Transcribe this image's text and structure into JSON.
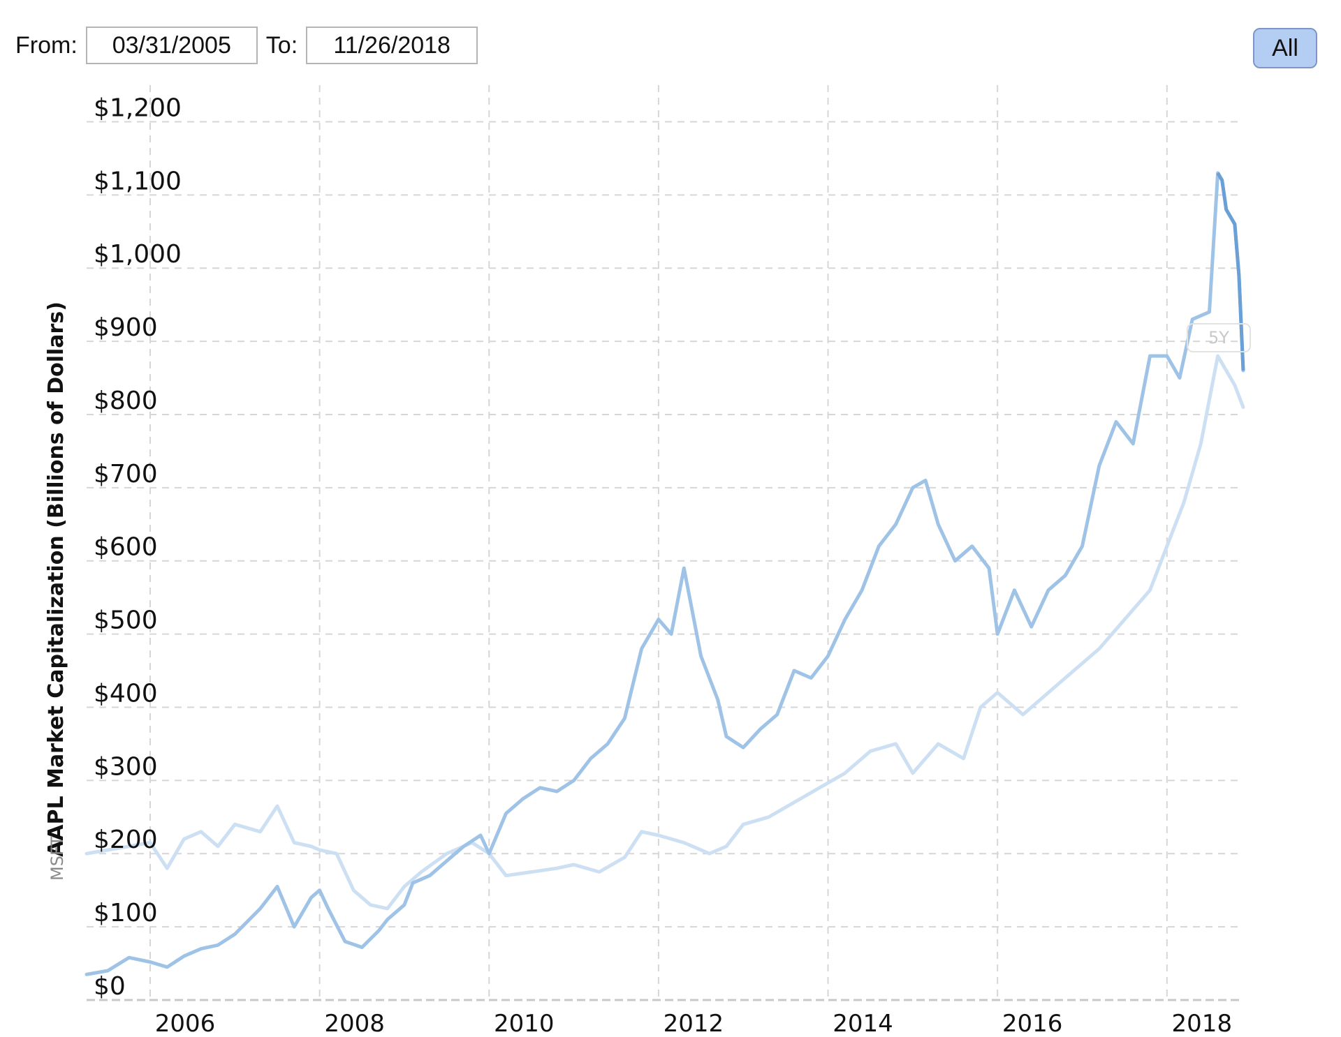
{
  "range_selector": {
    "from_label": "From:",
    "from_value": "03/31/2005",
    "to_label": "To:",
    "to_value": "11/26/2018",
    "all_button": "All",
    "overlay_button": "5Y"
  },
  "colors": {
    "aapl_line": "#9fc3e6",
    "msft_line": "#cde0f3",
    "peak_line": "#6aa0d6",
    "grid": "#d6d6d6",
    "all_button_bg": "#b4cdf3"
  },
  "chart_data": {
    "type": "line",
    "ylabel": "AAPL Market Capitalization (Billions of Dollars)",
    "comparison_label": "MSFT",
    "ylim": [
      0,
      1250
    ],
    "xlim": [
      2005.25,
      2018.9
    ],
    "yticks": [
      0,
      100,
      200,
      300,
      400,
      500,
      600,
      700,
      800,
      900,
      1000,
      1100,
      1200
    ],
    "ytick_labels": [
      "$0",
      "$100",
      "$200",
      "$300",
      "$400",
      "$500",
      "$600",
      "$700",
      "$800",
      "$900",
      "$1,000",
      "$1,100",
      "$1,200"
    ],
    "xticks": [
      2006,
      2008,
      2010,
      2012,
      2014,
      2016,
      2018
    ],
    "xtick_labels": [
      "2006",
      "2008",
      "2010",
      "2012",
      "2014",
      "2016",
      "2018"
    ],
    "grid": true,
    "series": [
      {
        "name": "AAPL",
        "x": [
          2005.25,
          2005.5,
          2005.75,
          2006.0,
          2006.2,
          2006.4,
          2006.6,
          2006.8,
          2007.0,
          2007.3,
          2007.5,
          2007.7,
          2007.9,
          2008.0,
          2008.1,
          2008.3,
          2008.5,
          2008.7,
          2008.8,
          2009.0,
          2009.1,
          2009.3,
          2009.5,
          2009.7,
          2009.9,
          2010.0,
          2010.2,
          2010.4,
          2010.6,
          2010.8,
          2011.0,
          2011.2,
          2011.4,
          2011.6,
          2011.8,
          2012.0,
          2012.15,
          2012.3,
          2012.5,
          2012.7,
          2012.8,
          2013.0,
          2013.2,
          2013.4,
          2013.6,
          2013.8,
          2014.0,
          2014.2,
          2014.4,
          2014.6,
          2014.8,
          2015.0,
          2015.15,
          2015.3,
          2015.5,
          2015.7,
          2015.9,
          2016.0,
          2016.2,
          2016.4,
          2016.6,
          2016.8,
          2017.0,
          2017.2,
          2017.4,
          2017.6,
          2017.8,
          2018.0,
          2018.15,
          2018.3,
          2018.5,
          2018.6,
          2018.65,
          2018.7,
          2018.8,
          2018.85,
          2018.9
        ],
        "values": [
          35,
          40,
          58,
          52,
          45,
          60,
          70,
          75,
          90,
          125,
          155,
          100,
          140,
          150,
          125,
          80,
          72,
          95,
          110,
          130,
          160,
          170,
          190,
          210,
          225,
          200,
          255,
          275,
          290,
          285,
          300,
          330,
          350,
          385,
          480,
          520,
          500,
          590,
          470,
          410,
          360,
          345,
          370,
          390,
          450,
          440,
          470,
          520,
          560,
          620,
          650,
          700,
          710,
          650,
          600,
          620,
          590,
          500,
          560,
          510,
          560,
          580,
          620,
          730,
          790,
          760,
          880,
          880,
          850,
          930,
          940,
          1130,
          1120,
          1080,
          1060,
          990,
          860
        ]
      },
      {
        "name": "MSFT",
        "x": [
          2005.25,
          2005.5,
          2005.75,
          2006.0,
          2006.2,
          2006.4,
          2006.6,
          2006.8,
          2007.0,
          2007.3,
          2007.5,
          2007.7,
          2007.9,
          2008.0,
          2008.2,
          2008.4,
          2008.6,
          2008.8,
          2009.0,
          2009.2,
          2009.5,
          2009.8,
          2010.0,
          2010.2,
          2010.5,
          2010.8,
          2011.0,
          2011.3,
          2011.6,
          2011.8,
          2012.0,
          2012.3,
          2012.6,
          2012.8,
          2013.0,
          2013.3,
          2013.6,
          2013.9,
          2014.2,
          2014.5,
          2014.8,
          2015.0,
          2015.3,
          2015.6,
          2015.8,
          2016.0,
          2016.3,
          2016.6,
          2016.9,
          2017.2,
          2017.5,
          2017.8,
          2018.0,
          2018.2,
          2018.4,
          2018.6,
          2018.8,
          2018.9
        ],
        "values": [
          200,
          205,
          210,
          215,
          180,
          220,
          230,
          210,
          240,
          230,
          265,
          215,
          210,
          205,
          200,
          150,
          130,
          125,
          155,
          175,
          200,
          215,
          200,
          170,
          175,
          180,
          185,
          175,
          195,
          230,
          225,
          215,
          200,
          210,
          240,
          250,
          270,
          290,
          310,
          340,
          350,
          310,
          350,
          330,
          400,
          420,
          390,
          420,
          450,
          480,
          520,
          560,
          620,
          680,
          760,
          880,
          840,
          810
        ]
      }
    ]
  }
}
